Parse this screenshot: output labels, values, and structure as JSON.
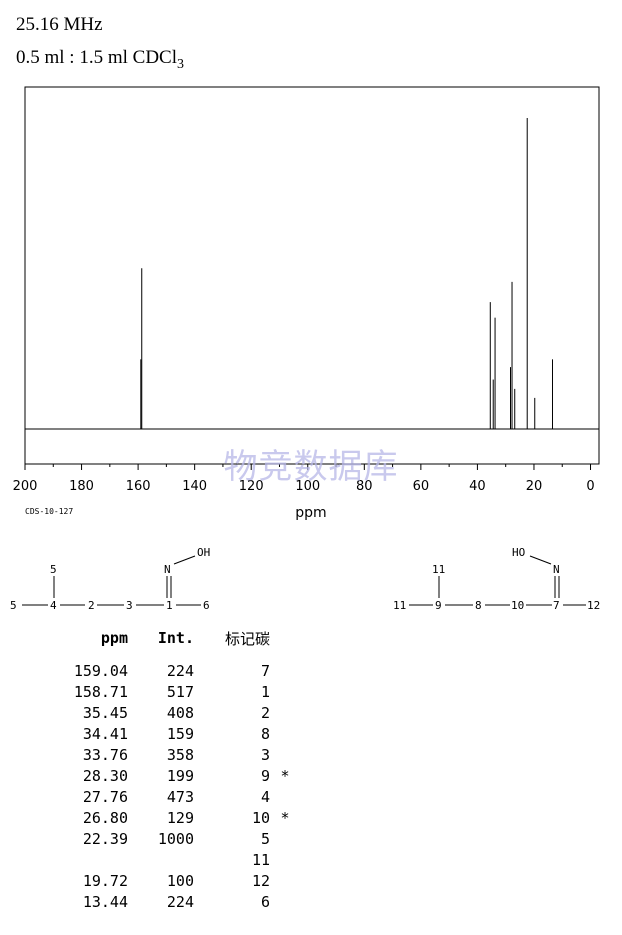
{
  "header": {
    "frequency": "25.16 MHz",
    "solvent_prefix": "0.5 ml : 1.5 ml CDCl",
    "solvent_sub": "3"
  },
  "chart_data": {
    "type": "nmr-stick-spectrum",
    "xlabel": "ppm",
    "xlim": [
      200,
      -3
    ],
    "x_ticks": [
      200,
      180,
      160,
      140,
      120,
      100,
      80,
      60,
      40,
      20,
      0
    ],
    "code": "CDS-10-127",
    "watermark": "物竞数据库",
    "peaks": [
      {
        "ppm": 159.04,
        "intensity": 224
      },
      {
        "ppm": 158.71,
        "intensity": 517
      },
      {
        "ppm": 35.45,
        "intensity": 408
      },
      {
        "ppm": 34.41,
        "intensity": 159
      },
      {
        "ppm": 33.76,
        "intensity": 358
      },
      {
        "ppm": 28.3,
        "intensity": 199
      },
      {
        "ppm": 27.76,
        "intensity": 473
      },
      {
        "ppm": 26.8,
        "intensity": 129
      },
      {
        "ppm": 22.39,
        "intensity": 1000
      },
      {
        "ppm": 19.72,
        "intensity": 100
      },
      {
        "ppm": 13.44,
        "intensity": 224
      }
    ]
  },
  "structures": {
    "left": {
      "a5top": "5",
      "a5": "5",
      "a4": "4",
      "a2": "2",
      "a3": "3",
      "a1": "1",
      "a6": "6",
      "n": "N",
      "oh": "OH"
    },
    "right": {
      "a11top": "11",
      "a11": "11",
      "a9": "9",
      "a8": "8",
      "a10": "10",
      "a7": "7",
      "a12": "12",
      "n": "N",
      "ho": "HO"
    }
  },
  "table": {
    "headers": {
      "ppm": "ppm",
      "int": "Int.",
      "atom": "标记碳"
    },
    "rows": [
      {
        "ppm": "159.04",
        "int": "224",
        "atom": "7",
        "star": ""
      },
      {
        "ppm": "158.71",
        "int": "517",
        "atom": "1",
        "star": ""
      },
      {
        "ppm": "35.45",
        "int": "408",
        "atom": "2",
        "star": ""
      },
      {
        "ppm": "34.41",
        "int": "159",
        "atom": "8",
        "star": ""
      },
      {
        "ppm": "33.76",
        "int": "358",
        "atom": "3",
        "star": ""
      },
      {
        "ppm": "28.30",
        "int": "199",
        "atom": "9",
        "star": "*"
      },
      {
        "ppm": "27.76",
        "int": "473",
        "atom": "4",
        "star": ""
      },
      {
        "ppm": "26.80",
        "int": "129",
        "atom": "10",
        "star": "*"
      },
      {
        "ppm": "22.39",
        "int": "1000",
        "atom": "5",
        "star": ""
      },
      {
        "ppm": "",
        "int": "",
        "atom": "11",
        "star": ""
      },
      {
        "ppm": "19.72",
        "int": "100",
        "atom": "12",
        "star": ""
      },
      {
        "ppm": "13.44",
        "int": "224",
        "atom": "6",
        "star": ""
      }
    ]
  }
}
